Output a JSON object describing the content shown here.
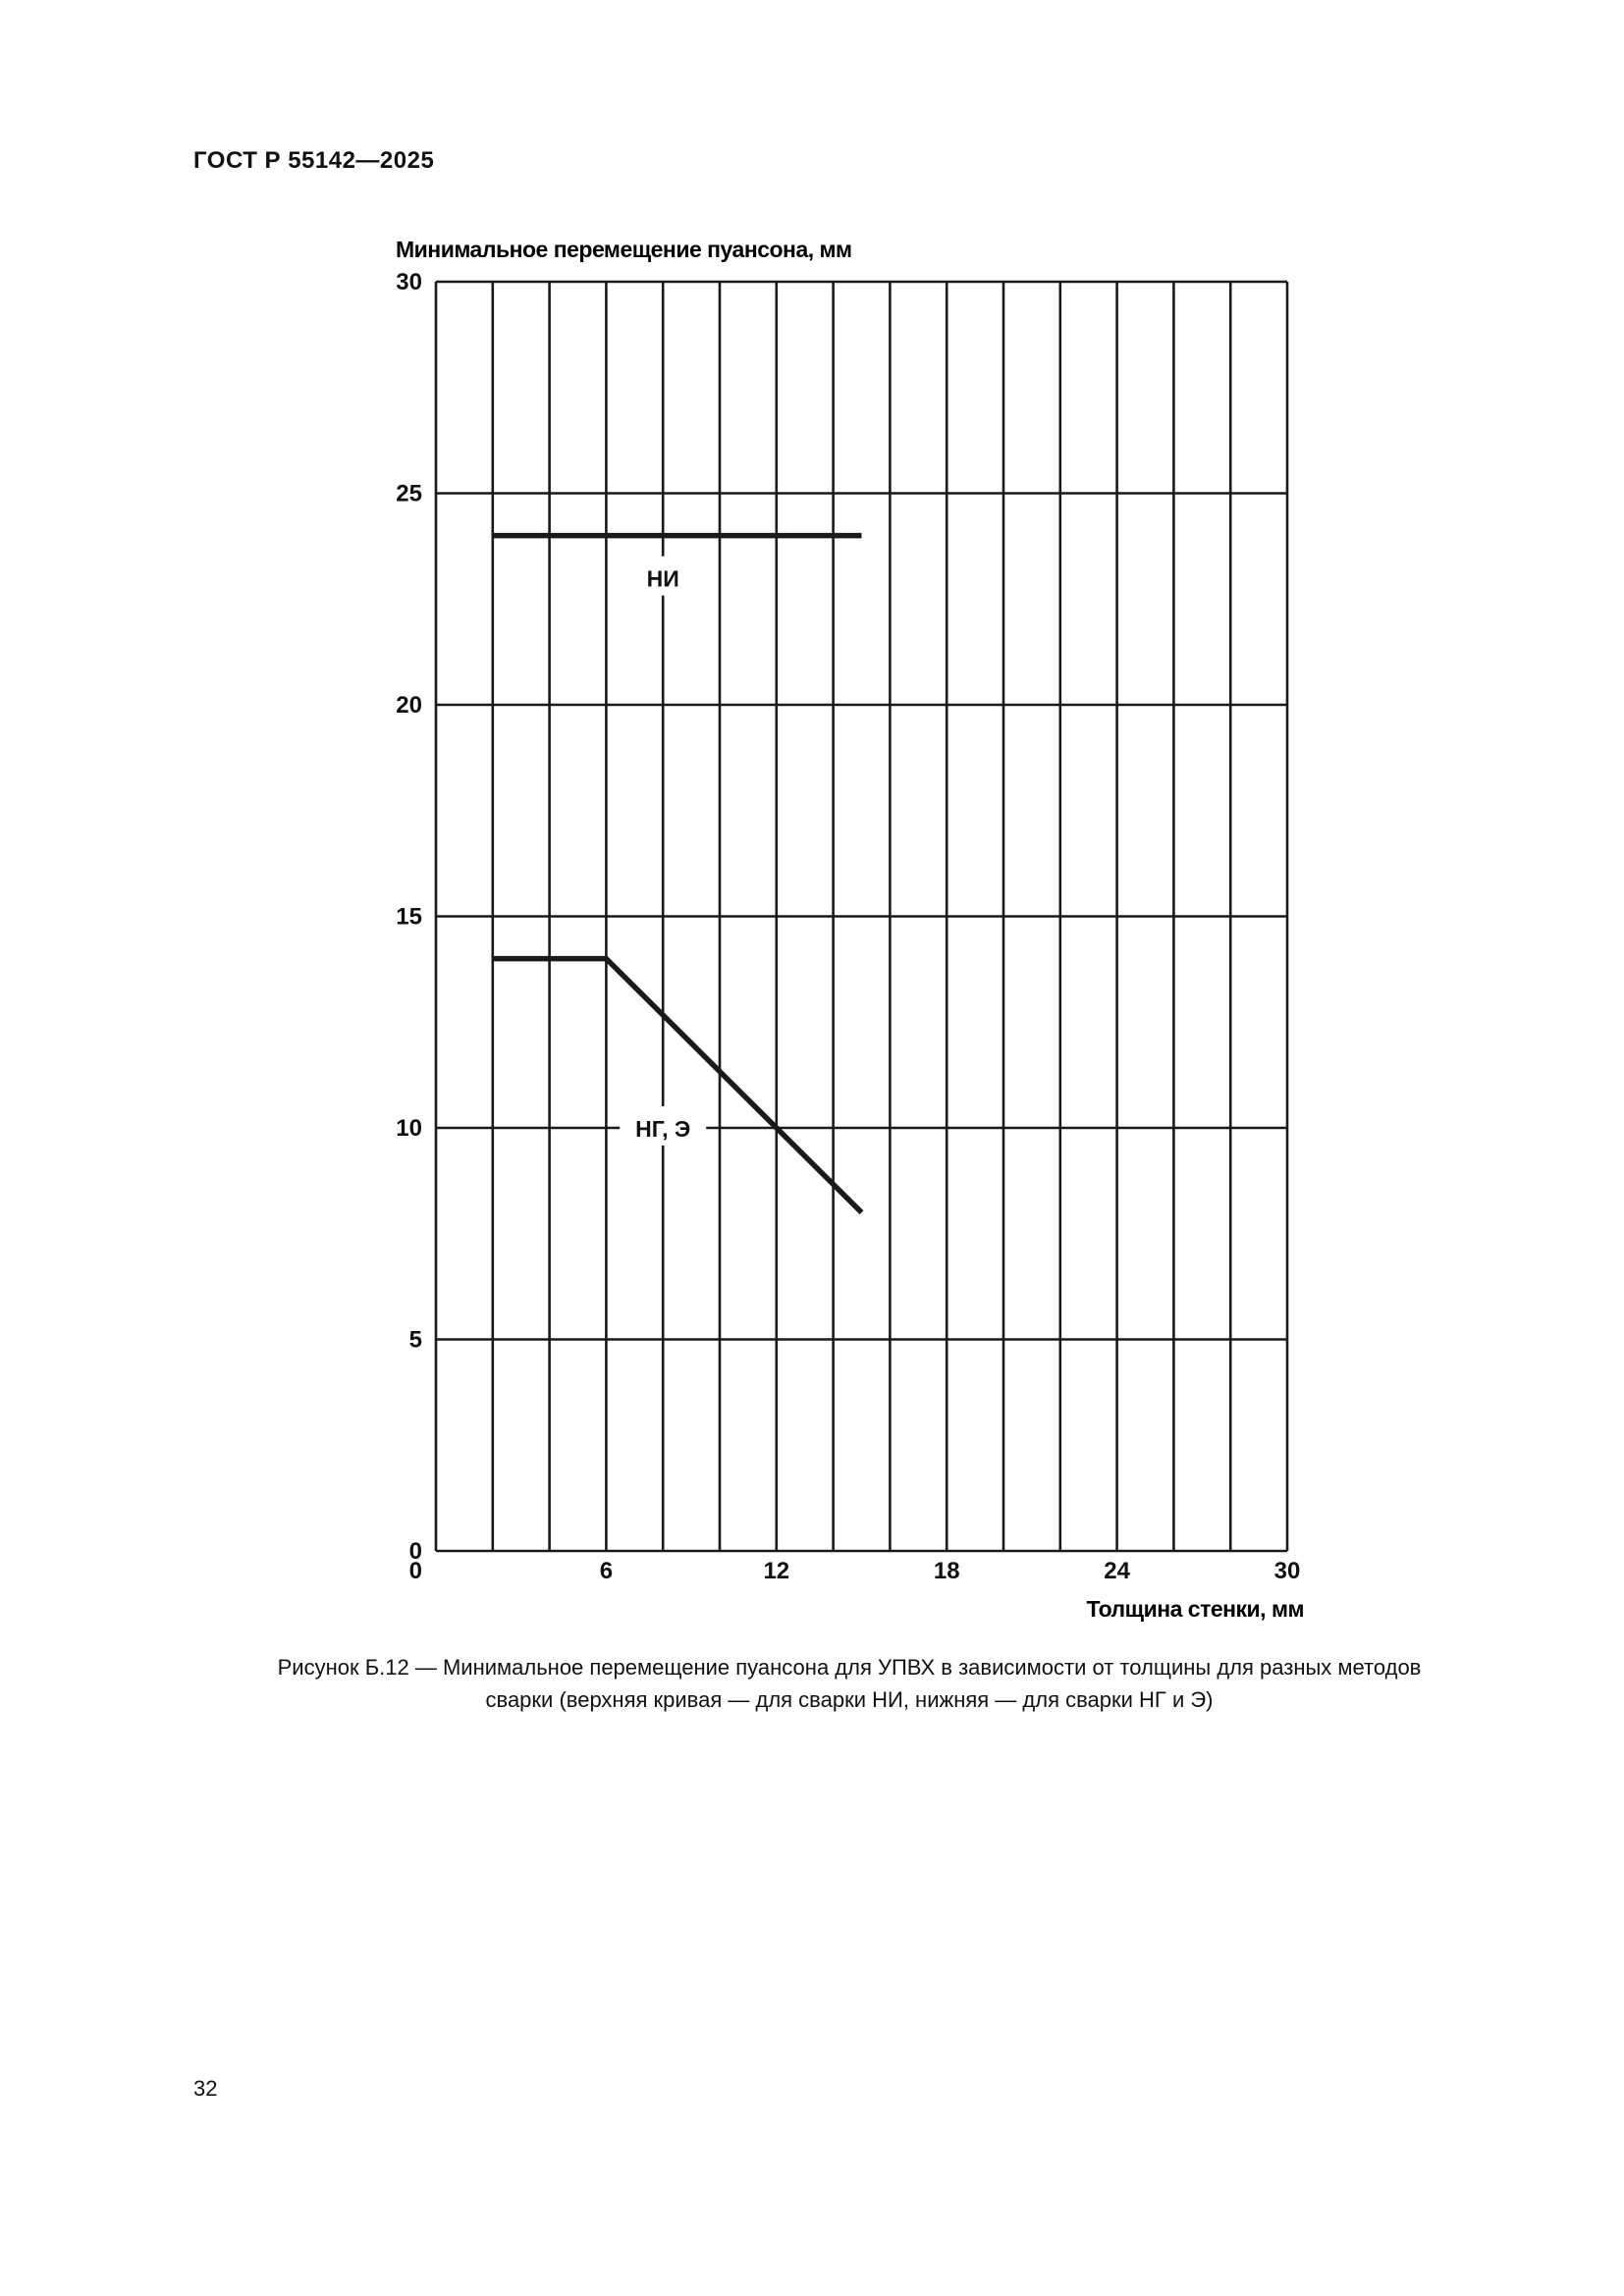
{
  "header": {
    "doc_id": "ГОСТ Р 55142—2025"
  },
  "caption": {
    "line1": "Рисунок Б.12 — Минимальное перемещение пуансона для УПВХ в зависимости от толщины для разных методов",
    "line2": "сварки (верхняя кривая — для сварки НИ, нижняя — для сварки НГ и Э)"
  },
  "page_number": "32",
  "chart_data": {
    "type": "line",
    "title": "",
    "ylabel": "Минимальное перемещение пуансона, мм",
    "xlabel": "Толщина стенки, мм",
    "xlim": [
      0,
      30
    ],
    "ylim": [
      0,
      30
    ],
    "x_ticks": [
      "0",
      "6",
      "12",
      "18",
      "24",
      "30"
    ],
    "y_ticks": [
      "0",
      "5",
      "10",
      "15",
      "20",
      "25",
      "30"
    ],
    "grid": {
      "x_step": 2,
      "y_step": 5,
      "on": true
    },
    "series": [
      {
        "name": "НИ",
        "points": [
          [
            2,
            24
          ],
          [
            15,
            24
          ]
        ],
        "label_at": [
          8,
          23
        ]
      },
      {
        "name": "НГ, Э",
        "points": [
          [
            2,
            14
          ],
          [
            6,
            14
          ],
          [
            15,
            8
          ]
        ],
        "label_at": [
          8,
          10
        ]
      }
    ],
    "colors": {
      "line": "#1a1a1a",
      "grid": "#1a1a1a"
    }
  }
}
